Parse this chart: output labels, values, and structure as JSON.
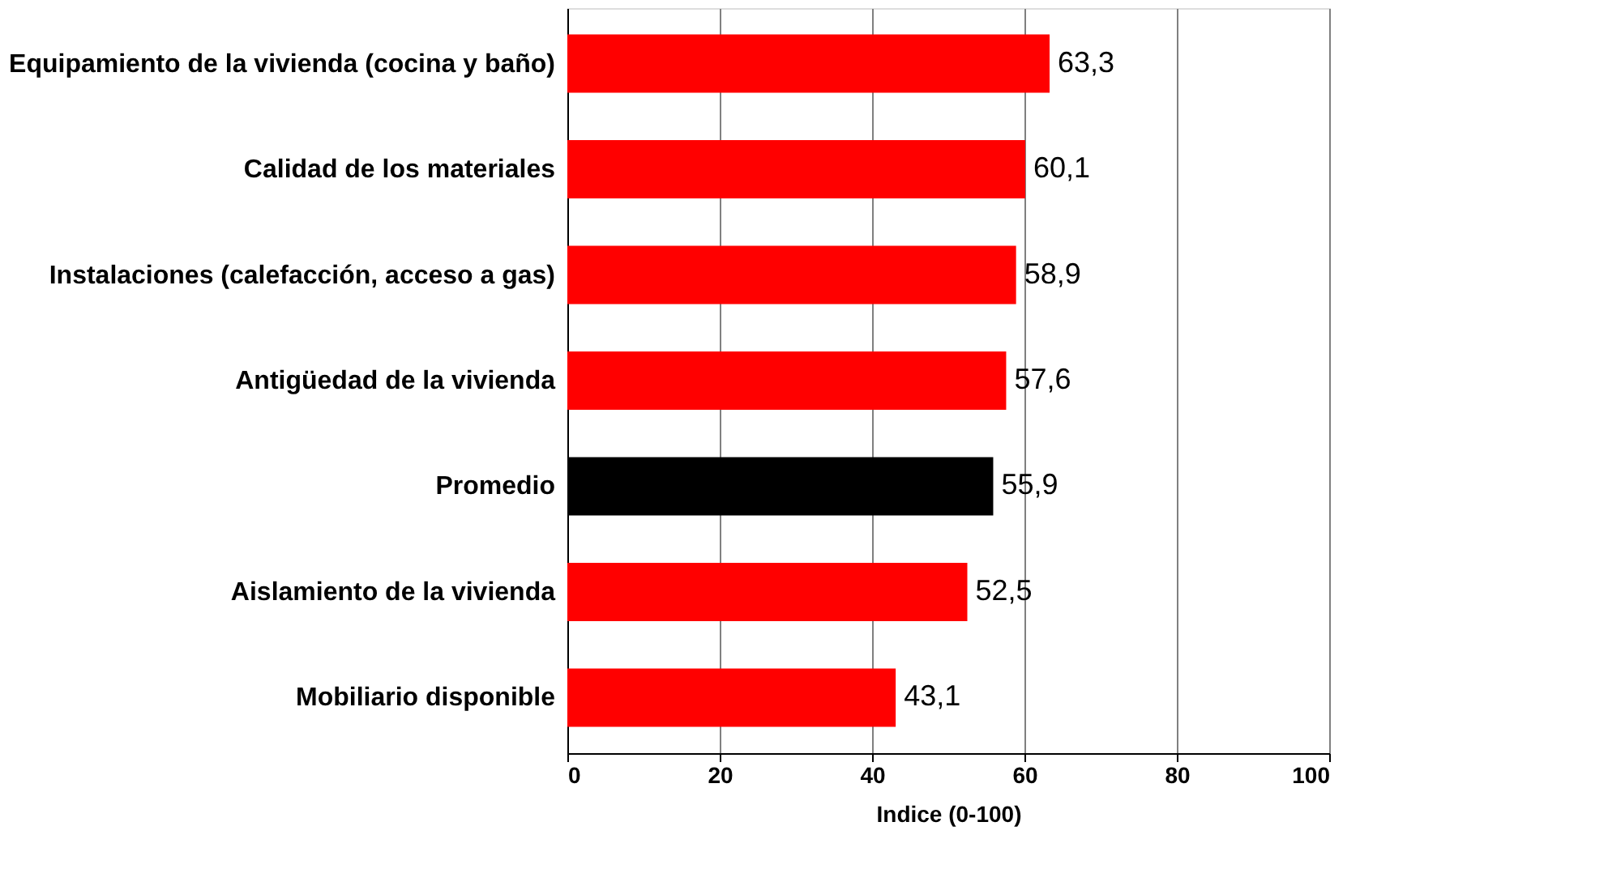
{
  "chart_data": {
    "type": "bar",
    "orientation": "horizontal",
    "xlabel": "Indice (0-100)",
    "categories": [
      "Equipamiento de la vivienda (cocina y baño)",
      "Calidad de los materiales",
      "Instalaciones (calefacción, acceso a gas)",
      "Antigüedad de la vivienda",
      "Promedio",
      "Aislamiento de la vivienda",
      "Mobiliario disponible"
    ],
    "values": [
      63.3,
      60.1,
      58.9,
      57.6,
      55.9,
      52.5,
      43.1
    ],
    "colors": [
      "#ff0000",
      "#ff0000",
      "#ff0000",
      "#ff0000",
      "#000000",
      "#ff0000",
      "#ff0000"
    ],
    "value_labels": [
      "63,3",
      "60,1",
      "58,9",
      "57,6",
      "55,9",
      "52,5",
      "43,1"
    ],
    "xlim": [
      0,
      100
    ],
    "xticks": [
      0,
      20,
      40,
      60,
      80,
      100
    ],
    "grid": "x"
  }
}
